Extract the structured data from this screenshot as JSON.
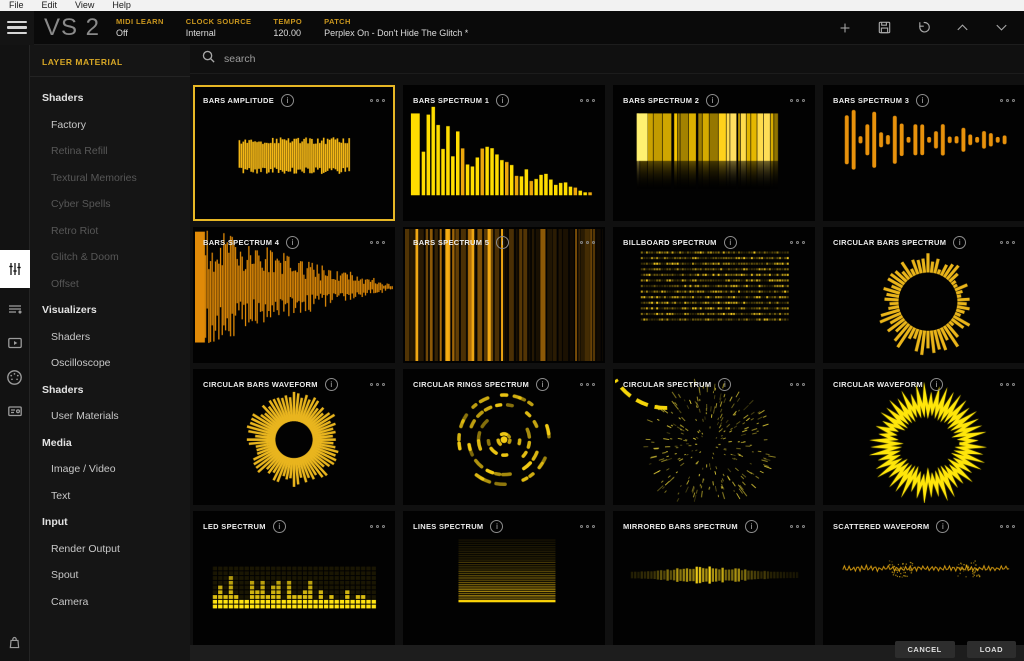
{
  "menu_bar": {
    "items": [
      "File",
      "Edit",
      "View",
      "Help"
    ]
  },
  "header": {
    "logo": "VS 2",
    "fields": [
      {
        "label": "MIDI LEARN",
        "value": "Off"
      },
      {
        "label": "CLOCK SOURCE",
        "value": "Internal"
      },
      {
        "label": "TEMPO",
        "value": "120.00"
      },
      {
        "label": "PATCH",
        "value": "Perplex On - Don't Hide The Glitch *"
      }
    ],
    "action_icons": [
      "plus-icon",
      "save-icon",
      "undo-icon",
      "chevron-up-icon",
      "chevron-down-icon"
    ]
  },
  "rail": {
    "icons": [
      "sliders-icon",
      "layers-list-icon",
      "media-player-icon",
      "midi-icon",
      "id-card-icon",
      "shop-bag-icon"
    ],
    "active_icon": "sliders-icon"
  },
  "sidebar": {
    "title": "LAYER MATERIAL",
    "items": [
      {
        "label": "Shaders",
        "type": "category",
        "dimmed": false
      },
      {
        "label": "Factory",
        "type": "item",
        "dimmed": false
      },
      {
        "label": "Retina Refill",
        "type": "item",
        "dimmed": true
      },
      {
        "label": "Textural Memories",
        "type": "item",
        "dimmed": true
      },
      {
        "label": "Cyber Spells",
        "type": "item",
        "dimmed": true
      },
      {
        "label": "Retro Riot",
        "type": "item",
        "dimmed": true
      },
      {
        "label": "Glitch & Doom",
        "type": "item",
        "dimmed": true
      },
      {
        "label": "Offset",
        "type": "item",
        "dimmed": true
      },
      {
        "label": "Visualizers",
        "type": "category",
        "dimmed": false
      },
      {
        "label": "Shaders",
        "type": "item",
        "dimmed": false
      },
      {
        "label": "Oscilloscope",
        "type": "item",
        "dimmed": false
      },
      {
        "label": "Shaders",
        "type": "category",
        "dimmed": false
      },
      {
        "label": "User Materials",
        "type": "item",
        "dimmed": false
      },
      {
        "label": "Media",
        "type": "category",
        "dimmed": false
      },
      {
        "label": "Image / Video",
        "type": "item",
        "dimmed": false
      },
      {
        "label": "Text",
        "type": "item",
        "dimmed": false
      },
      {
        "label": "Input",
        "type": "category",
        "dimmed": false
      },
      {
        "label": "Render Output",
        "type": "item",
        "dimmed": false
      },
      {
        "label": "Spout",
        "type": "item",
        "dimmed": false
      },
      {
        "label": "Camera",
        "type": "item",
        "dimmed": false
      }
    ]
  },
  "search": {
    "placeholder": "search",
    "icon": "search-icon"
  },
  "grid": {
    "presets": [
      {
        "name": "BARS AMPLITUDE",
        "visual": "bars-amplitude",
        "selected": true
      },
      {
        "name": "BARS SPECTRUM 1",
        "visual": "bars-spectrum-1",
        "selected": false
      },
      {
        "name": "BARS SPECTRUM 2",
        "visual": "bars-spectrum-2",
        "selected": false
      },
      {
        "name": "BARS SPECTRUM 3",
        "visual": "bars-spectrum-3",
        "selected": false
      },
      {
        "name": "BARS SPECTRUM 4",
        "visual": "bars-spectrum-4",
        "selected": false
      },
      {
        "name": "BARS SPECTRUM 5",
        "visual": "bars-spectrum-5",
        "selected": false
      },
      {
        "name": "BILLBOARD SPECTRUM",
        "visual": "billboard-spectrum",
        "selected": false
      },
      {
        "name": "CIRCULAR BARS SPECTRUM",
        "visual": "circular-bars-spectrum",
        "selected": false
      },
      {
        "name": "CIRCULAR BARS WAVEFORM",
        "visual": "circular-bars-waveform",
        "selected": false
      },
      {
        "name": "CIRCULAR RINGS SPECTRUM",
        "visual": "circular-rings-spectrum",
        "selected": false
      },
      {
        "name": "CIRCULAR SPECTRUM",
        "visual": "circular-spectrum",
        "selected": false
      },
      {
        "name": "CIRCULAR WAVEFORM",
        "visual": "circular-waveform",
        "selected": false
      },
      {
        "name": "LED SPECTRUM",
        "visual": "led-spectrum",
        "selected": false
      },
      {
        "name": "LINES SPECTRUM",
        "visual": "lines-spectrum",
        "selected": false
      },
      {
        "name": "MIRRORED BARS SPECTRUM",
        "visual": "mirrored-bars-spectrum",
        "selected": false
      },
      {
        "name": "SCATTERED WAVEFORM",
        "visual": "scattered-waveform",
        "selected": false
      }
    ],
    "card_icons": [
      "info-icon",
      "more-dots-icon"
    ]
  },
  "footer": {
    "cancel_label": "CANCEL",
    "load_label": "LOAD"
  },
  "colors": {
    "accent": "#e7b725",
    "bright_yellow": "#ffdd00",
    "gold": "#eab51a",
    "orange": "#e8920c",
    "header_label": "#c9961e",
    "sidebar_title": "#d8a826"
  }
}
